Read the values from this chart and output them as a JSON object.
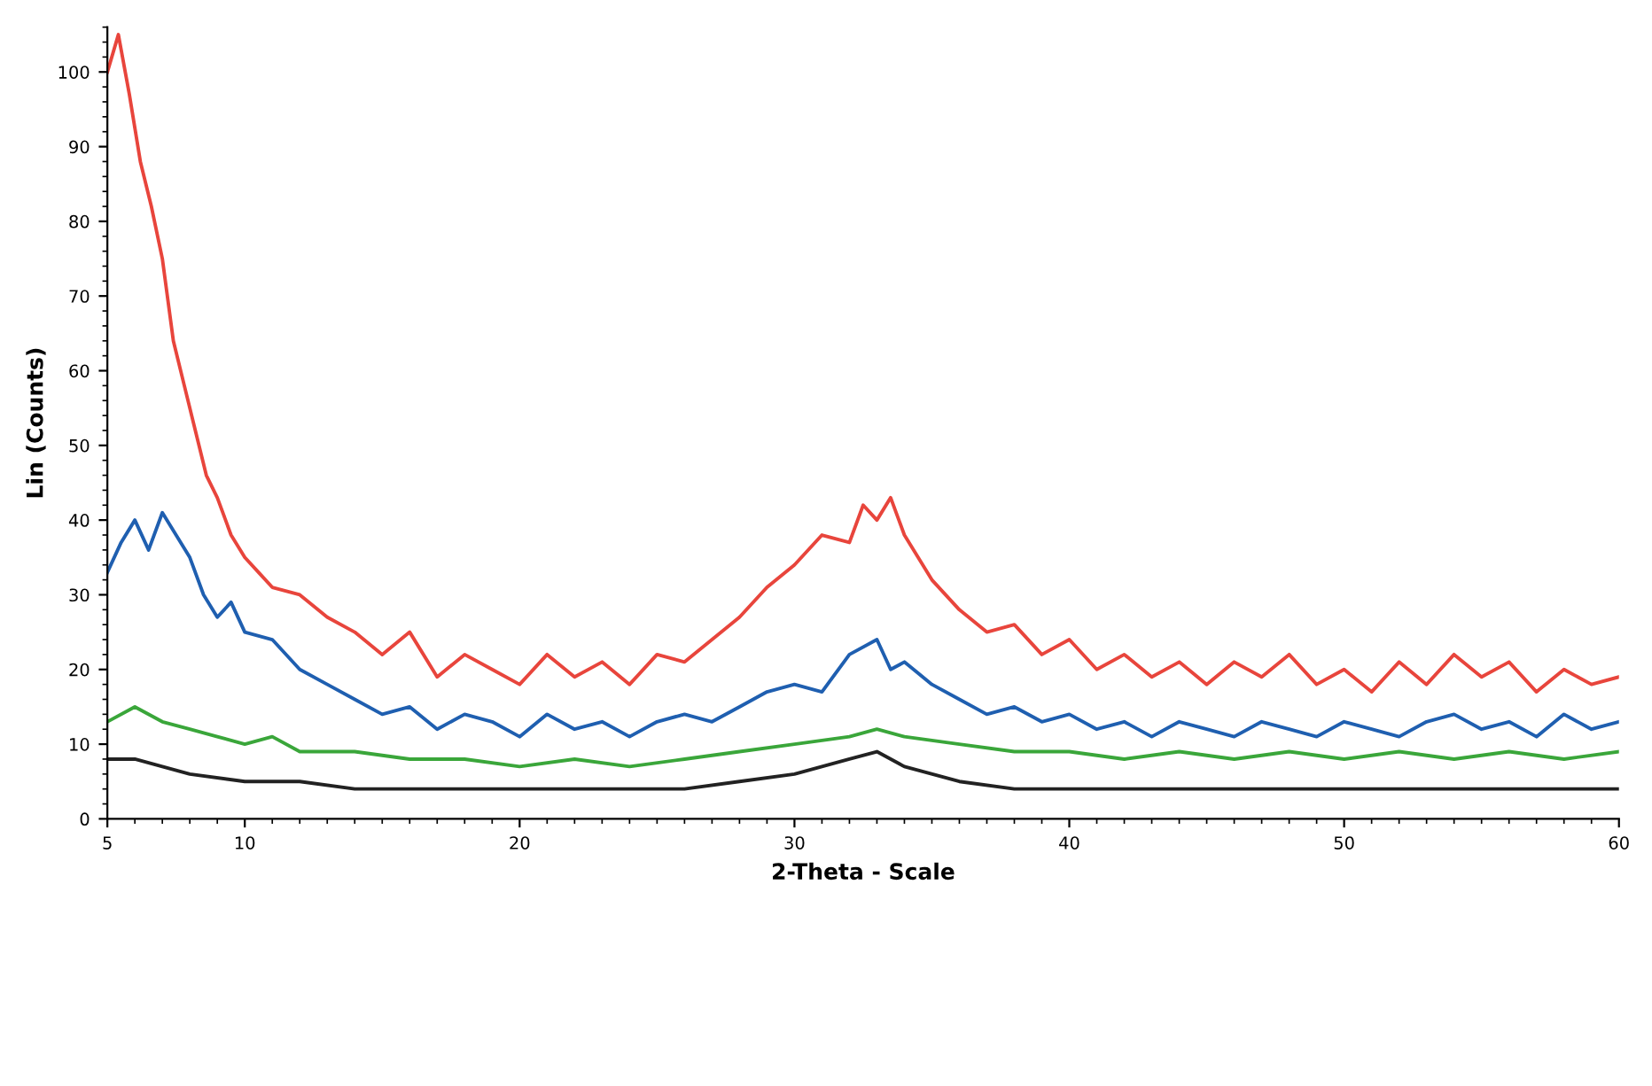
{
  "chart_data": {
    "type": "line",
    "xlabel": "2-Theta - Scale",
    "ylabel": "Lin (Counts)",
    "xlim": [
      5,
      60
    ],
    "ylim": [
      0,
      106
    ],
    "xticks": [
      5,
      10,
      20,
      30,
      40,
      50,
      60
    ],
    "yticks": [
      0,
      10,
      20,
      30,
      40,
      50,
      60,
      70,
      80,
      90,
      100
    ],
    "grid": false,
    "series": [
      {
        "color": "#e8453c",
        "x": [
          5,
          5.4,
          5.8,
          6.2,
          6.6,
          7,
          7.4,
          7.8,
          8.2,
          8.6,
          9,
          9.5,
          10,
          10.5,
          11,
          12,
          13,
          14,
          15,
          16,
          17,
          18,
          19,
          20,
          21,
          22,
          23,
          24,
          25,
          26,
          27,
          28,
          29,
          30,
          31,
          32,
          32.5,
          33,
          33.5,
          34,
          35,
          36,
          37,
          38,
          39,
          40,
          41,
          42,
          43,
          44,
          45,
          46,
          47,
          48,
          49,
          50,
          51,
          52,
          53,
          54,
          55,
          56,
          57,
          58,
          59,
          60
        ],
        "values": [
          100,
          105,
          97,
          88,
          82,
          75,
          64,
          58,
          52,
          46,
          43,
          38,
          35,
          33,
          31,
          30,
          27,
          25,
          22,
          25,
          19,
          22,
          20,
          18,
          22,
          19,
          21,
          18,
          22,
          21,
          24,
          27,
          31,
          34,
          38,
          37,
          42,
          40,
          43,
          38,
          32,
          28,
          25,
          26,
          22,
          24,
          20,
          22,
          19,
          21,
          18,
          21,
          19,
          22,
          18,
          20,
          17,
          21,
          18,
          22,
          19,
          21,
          17,
          20,
          18,
          19
        ]
      },
      {
        "color": "#1f5fb0",
        "x": [
          5,
          5.5,
          6,
          6.5,
          7,
          7.5,
          8,
          8.5,
          9,
          9.5,
          10,
          11,
          12,
          13,
          14,
          15,
          16,
          17,
          18,
          19,
          20,
          21,
          22,
          23,
          24,
          25,
          26,
          27,
          28,
          29,
          30,
          31,
          32,
          33,
          33.5,
          34,
          35,
          36,
          37,
          38,
          39,
          40,
          41,
          42,
          43,
          44,
          45,
          46,
          47,
          48,
          49,
          50,
          51,
          52,
          53,
          54,
          55,
          56,
          57,
          58,
          59,
          60
        ],
        "values": [
          33,
          37,
          40,
          36,
          41,
          38,
          35,
          30,
          27,
          29,
          25,
          24,
          20,
          18,
          16,
          14,
          15,
          12,
          14,
          13,
          11,
          14,
          12,
          13,
          11,
          13,
          14,
          13,
          15,
          17,
          18,
          17,
          22,
          24,
          20,
          21,
          18,
          16,
          14,
          15,
          13,
          14,
          12,
          13,
          11,
          13,
          12,
          11,
          13,
          12,
          11,
          13,
          12,
          11,
          13,
          14,
          12,
          13,
          11,
          14,
          12,
          13
        ]
      },
      {
        "color": "#3aa63a",
        "x": [
          5,
          6,
          7,
          8,
          9,
          10,
          11,
          12,
          14,
          16,
          18,
          20,
          22,
          24,
          26,
          28,
          30,
          32,
          33,
          34,
          36,
          38,
          40,
          42,
          44,
          46,
          48,
          50,
          52,
          54,
          56,
          58,
          60
        ],
        "values": [
          13,
          15,
          13,
          12,
          11,
          10,
          11,
          9,
          9,
          8,
          8,
          7,
          8,
          7,
          8,
          9,
          10,
          11,
          12,
          11,
          10,
          9,
          9,
          8,
          9,
          8,
          9,
          8,
          9,
          8,
          9,
          8,
          9
        ]
      },
      {
        "color": "#222222",
        "x": [
          5,
          6,
          7,
          8,
          10,
          12,
          14,
          16,
          18,
          20,
          22,
          24,
          26,
          28,
          30,
          32,
          33,
          34,
          36,
          38,
          40,
          42,
          44,
          46,
          48,
          50,
          52,
          54,
          56,
          58,
          60
        ],
        "values": [
          8,
          8,
          7,
          6,
          5,
          5,
          4,
          4,
          4,
          4,
          4,
          4,
          4,
          5,
          6,
          8,
          9,
          7,
          5,
          4,
          4,
          4,
          4,
          4,
          4,
          4,
          4,
          4,
          4,
          4,
          4
        ]
      }
    ]
  }
}
